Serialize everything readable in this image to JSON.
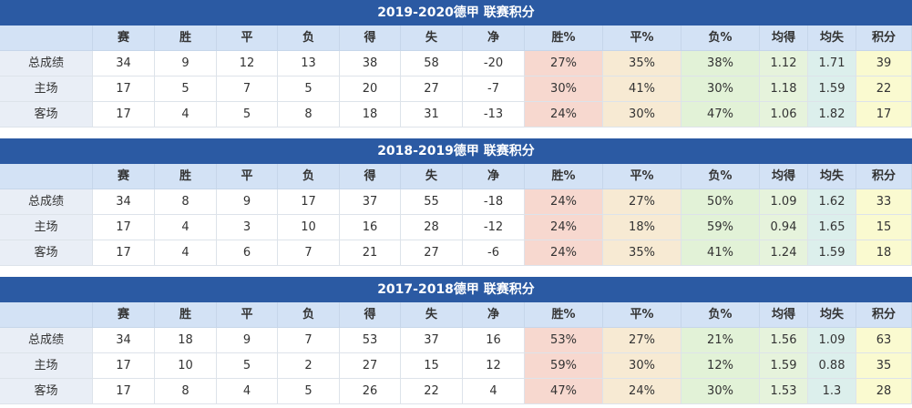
{
  "tables": [
    {
      "title": "2019-2020德甲 联赛积分",
      "columns": [
        "赛",
        "胜",
        "平",
        "负",
        "得",
        "失",
        "净",
        "胜%",
        "平%",
        "负%",
        "均得",
        "均失",
        "积分"
      ],
      "rows": [
        {
          "label": "总成绩",
          "cells": [
            "34",
            "9",
            "12",
            "13",
            "38",
            "58",
            "-20",
            "27%",
            "35%",
            "38%",
            "1.12",
            "1.71",
            "39"
          ]
        },
        {
          "label": "主场",
          "cells": [
            "17",
            "5",
            "7",
            "5",
            "20",
            "27",
            "-7",
            "30%",
            "41%",
            "30%",
            "1.18",
            "1.59",
            "22"
          ]
        },
        {
          "label": "客场",
          "cells": [
            "17",
            "4",
            "5",
            "8",
            "18",
            "31",
            "-13",
            "24%",
            "30%",
            "47%",
            "1.06",
            "1.82",
            "17"
          ]
        }
      ]
    },
    {
      "title": "2018-2019德甲 联赛积分",
      "columns": [
        "赛",
        "胜",
        "平",
        "负",
        "得",
        "失",
        "净",
        "胜%",
        "平%",
        "负%",
        "均得",
        "均失",
        "积分"
      ],
      "rows": [
        {
          "label": "总成绩",
          "cells": [
            "34",
            "8",
            "9",
            "17",
            "37",
            "55",
            "-18",
            "24%",
            "27%",
            "50%",
            "1.09",
            "1.62",
            "33"
          ]
        },
        {
          "label": "主场",
          "cells": [
            "17",
            "4",
            "3",
            "10",
            "16",
            "28",
            "-12",
            "24%",
            "18%",
            "59%",
            "0.94",
            "1.65",
            "15"
          ]
        },
        {
          "label": "客场",
          "cells": [
            "17",
            "4",
            "6",
            "7",
            "21",
            "27",
            "-6",
            "24%",
            "35%",
            "41%",
            "1.24",
            "1.59",
            "18"
          ]
        }
      ]
    },
    {
      "title": "2017-2018德甲 联赛积分",
      "columns": [
        "赛",
        "胜",
        "平",
        "负",
        "得",
        "失",
        "净",
        "胜%",
        "平%",
        "负%",
        "均得",
        "均失",
        "积分"
      ],
      "rows": [
        {
          "label": "总成绩",
          "cells": [
            "34",
            "18",
            "9",
            "7",
            "53",
            "37",
            "16",
            "53%",
            "27%",
            "21%",
            "1.56",
            "1.09",
            "63"
          ]
        },
        {
          "label": "主场",
          "cells": [
            "17",
            "10",
            "5",
            "2",
            "27",
            "15",
            "12",
            "59%",
            "30%",
            "12%",
            "1.59",
            "0.88",
            "35"
          ]
        },
        {
          "label": "客场",
          "cells": [
            "17",
            "8",
            "4",
            "5",
            "26",
            "22",
            "4",
            "47%",
            "24%",
            "30%",
            "1.53",
            "1.3",
            "28"
          ]
        }
      ]
    }
  ]
}
